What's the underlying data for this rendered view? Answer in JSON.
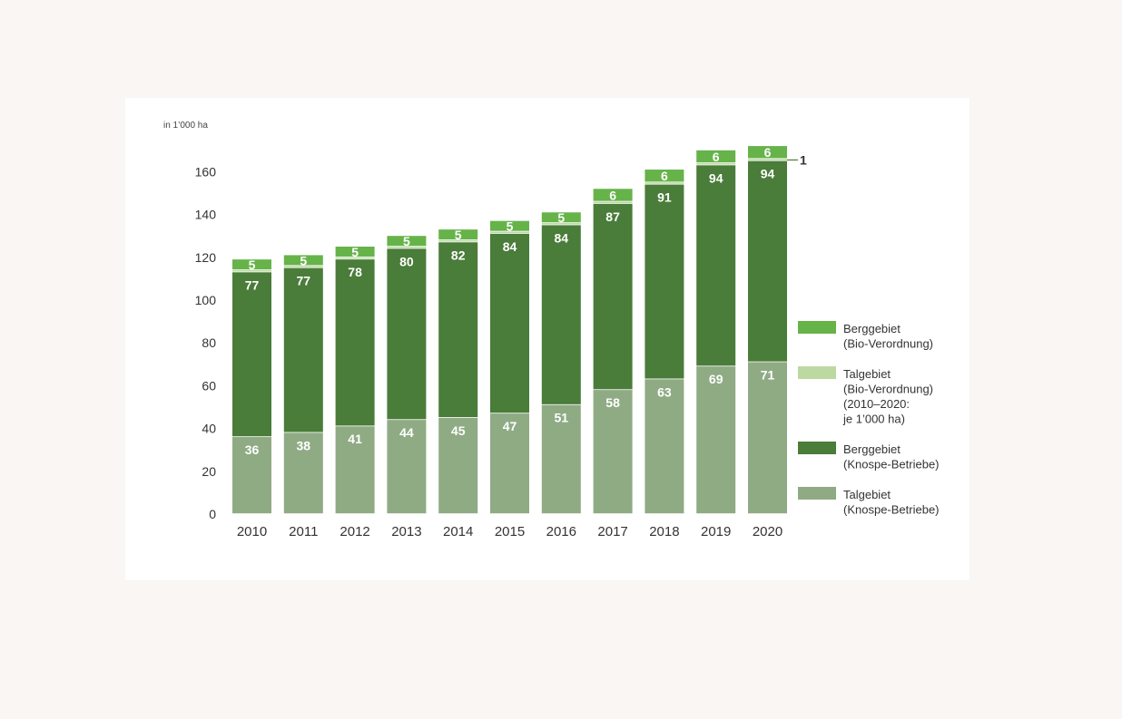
{
  "chart_data": {
    "type": "bar",
    "stacked": true,
    "unit_label": "in 1’000 ha",
    "categories": [
      "2010",
      "2011",
      "2012",
      "2013",
      "2014",
      "2015",
      "2016",
      "2017",
      "2018",
      "2019",
      "2020"
    ],
    "series": [
      {
        "name": "Talgebiet (Knospe-Betriebe)",
        "color": "#8fab84",
        "values": [
          36,
          38,
          41,
          44,
          45,
          47,
          51,
          58,
          63,
          69,
          71
        ],
        "shown_labels": [
          "36",
          "38",
          "41",
          "44",
          "45",
          "47",
          "51",
          "58",
          "63",
          "69",
          "71"
        ]
      },
      {
        "name": "Berggebiet (Knospe-Betriebe)",
        "color": "#4a7c3a",
        "values": [
          77,
          77,
          78,
          80,
          82,
          84,
          84,
          87,
          91,
          94,
          94
        ],
        "shown_labels": [
          "77",
          "77",
          "78",
          "80",
          "82",
          "84",
          "84",
          "87",
          "91",
          "94",
          "94"
        ]
      },
      {
        "name": "Talgebiet (Bio-Verordnung) (2010–2020: je 1’000 ha)",
        "color": "#bcd9a2",
        "values": [
          1,
          1,
          1,
          1,
          1,
          1,
          1,
          1,
          1,
          1,
          1
        ],
        "shown_labels": [
          "",
          "",
          "",
          "",
          "",
          "",
          "",
          "",
          "",
          "",
          "1"
        ]
      },
      {
        "name": "Berggebiet (Bio-Verordnung)",
        "color": "#66b34a",
        "values": [
          5,
          5,
          5,
          5,
          5,
          5,
          5,
          6,
          6,
          6,
          6
        ],
        "shown_labels": [
          "5",
          "5",
          "5",
          "5",
          "5",
          "5",
          "5",
          "6",
          "6",
          "6",
          "6"
        ]
      }
    ],
    "yticks": [
      0,
      20,
      40,
      60,
      80,
      100,
      120,
      140,
      160
    ],
    "ylim": [
      0,
      170
    ],
    "grid": false,
    "legend": {
      "position": "right",
      "items": [
        {
          "lines": [
            "Berggebiet",
            "(Bio-Verordnung)"
          ],
          "color": "#66b34a"
        },
        {
          "lines": [
            "Talgebiet",
            "(Bio-Verordnung)",
            "(2010–2020:",
            "je 1’000 ha)"
          ],
          "color": "#bcd9a2"
        },
        {
          "lines": [
            "Berggebiet",
            "(Knospe-Betriebe)"
          ],
          "color": "#4a7c3a"
        },
        {
          "lines": [
            "Talgebiet",
            "(Knospe-Betriebe)"
          ],
          "color": "#8fab84"
        }
      ]
    }
  }
}
